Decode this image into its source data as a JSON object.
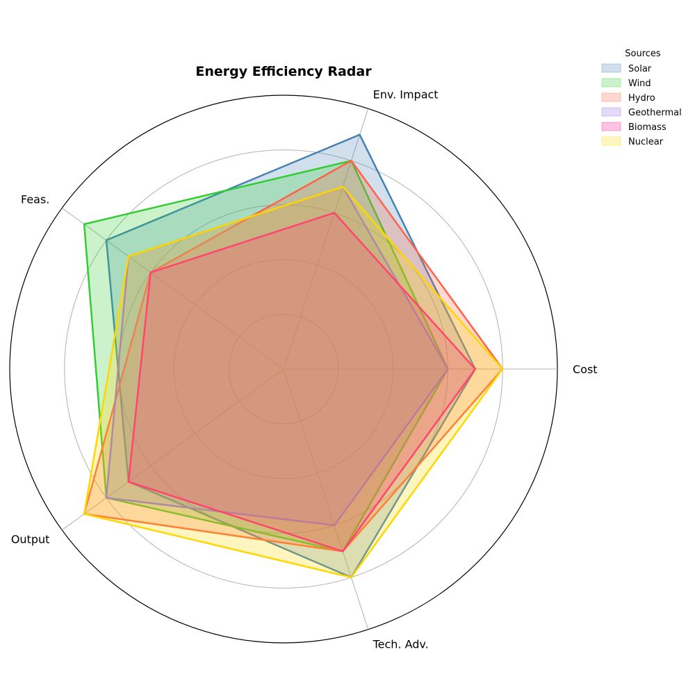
{
  "chart_data": {
    "type": "radar",
    "title": "Energy Efficiency Radar",
    "axes": [
      "Cost",
      "Env. Impact",
      "Feas.",
      "Output",
      "Tech. Adv."
    ],
    "rlim": [
      0,
      10
    ],
    "grid_levels": [
      2,
      4,
      6,
      8,
      10
    ],
    "legend_title": "Sources",
    "legend_position": "upper-right",
    "series": [
      {
        "name": "Solar",
        "values": [
          7,
          9,
          8,
          7,
          8
        ],
        "color": "#4682B4"
      },
      {
        "name": "Wind",
        "values": [
          6,
          8,
          9,
          8,
          7
        ],
        "color": "#32CD32"
      },
      {
        "name": "Hydro",
        "values": [
          8,
          8,
          6,
          9,
          7
        ],
        "color": "#FF6347"
      },
      {
        "name": "Geothermal",
        "values": [
          6,
          7,
          7,
          8,
          6
        ],
        "color": "#9370DB"
      },
      {
        "name": "Biomass",
        "values": [
          7,
          6,
          6,
          7,
          7
        ],
        "color": "#FF1493"
      },
      {
        "name": "Nuclear",
        "values": [
          8,
          7,
          7,
          9,
          8
        ],
        "color": "#FFD700"
      }
    ]
  }
}
